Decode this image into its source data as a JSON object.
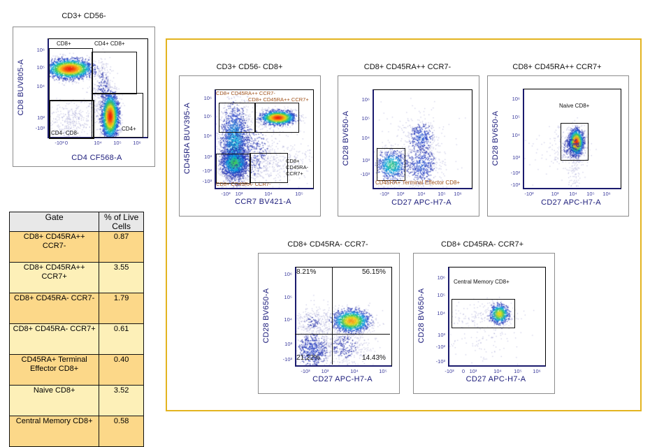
{
  "table": {
    "headers": [
      "Gate",
      "% of Live Cells"
    ],
    "rows": [
      {
        "gate": "CD8+ CD45RA++ CCR7-",
        "value": "0.87"
      },
      {
        "gate": "CD8+ CD45RA++ CCR7+",
        "value": "3.55"
      },
      {
        "gate": "CD8+ CD45RA- CCR7-",
        "value": "1.79"
      },
      {
        "gate": "CD8+ CD45RA- CCR7+",
        "value": "0.61"
      },
      {
        "gate": "CD45RA+ Terminal Effector CD8+",
        "value": "0.40"
      },
      {
        "gate": "Naive CD8+",
        "value": "3.52"
      },
      {
        "gate": "Central Memory CD8+",
        "value": "0.58"
      }
    ]
  },
  "colors": {
    "highlight_border": "#e3b420",
    "row_dark": "#fcd889",
    "row_light": "#fdf0b8",
    "axis_text": "#1b1b7a"
  },
  "chart_data": [
    {
      "type": "scatter",
      "title": "CD3+ CD56-",
      "xlabel": "CD4 CF568-A",
      "ylabel": "CD8 BUV805-A",
      "scale": "biexponential",
      "xticks": [
        "-10³",
        "0",
        "10⁴",
        "10⁵",
        "10⁶"
      ],
      "yticks": [
        "10⁶",
        "10⁵",
        "10⁴",
        "10²",
        "-10³"
      ],
      "gates": [
        "CD8+",
        "CD4+ CD8+",
        "CD4+",
        "CD4- CD8-"
      ]
    },
    {
      "type": "scatter",
      "title": "CD3+ CD56- CD8+",
      "xlabel": "CCR7 BV421-A",
      "ylabel": "CD45RA BUV395-A",
      "scale": "biexponential",
      "xticks": [
        "-10³",
        "10³",
        "10⁴",
        "10⁵"
      ],
      "yticks": [
        "10⁶",
        "10⁵",
        "10⁴",
        "10³",
        "-10²",
        "-10³"
      ],
      "gates": [
        "CD8+ CD45RA++ CCR7-",
        "CD8+ CD45RA++ CCR7+",
        "CD8+ CD45RA- CCR7-",
        "CD8+\nCD45RA-\nCCR7+"
      ]
    },
    {
      "type": "scatter",
      "title": "CD8+ CD45RA++ CCR7-",
      "xlabel": "CD27 APC-H7-A",
      "ylabel": "CD28 BV650-A",
      "scale": "biexponential",
      "xticks": [
        "-10³",
        "10³",
        "10⁴",
        "10⁵",
        "10⁶"
      ],
      "yticks": [
        "10⁶",
        "10⁵",
        "10⁴",
        "10³",
        "-10³"
      ],
      "gates": [
        "CD45RA+ Terminal Effector CD8+"
      ]
    },
    {
      "type": "scatter",
      "title": "CD8+ CD45RA++ CCR7+",
      "xlabel": "CD27 APC-H7-A",
      "ylabel": "CD28 BV650-A",
      "scale": "biexponential",
      "xticks": [
        "-10²",
        "10³",
        "10⁴",
        "10⁵",
        "10⁶"
      ],
      "yticks": [
        "10⁶",
        "10⁵",
        "10⁴",
        "10³",
        "-10²",
        "-10³"
      ],
      "gates": [
        "Naive CD8+"
      ]
    },
    {
      "type": "scatter",
      "title": "CD8+ CD45RA- CCR7-",
      "xlabel": "CD27 APC-H7-A",
      "ylabel": "CD28 BV650-A",
      "scale": "biexponential",
      "xticks": [
        "-10³",
        "10³",
        "10⁴",
        "10⁵"
      ],
      "yticks": [
        "10⁶",
        "10⁵",
        "10⁴",
        "10³",
        "-10³"
      ],
      "quadrants": {
        "top_left": "8.21%",
        "top_right": "56.15%",
        "bottom_left": "21.22%",
        "bottom_right": "14.43%"
      }
    },
    {
      "type": "scatter",
      "title": "CD8+ CD45RA- CCR7+",
      "xlabel": "CD27 APC-H7-A",
      "ylabel": "CD28 BV650-A",
      "scale": "biexponential",
      "xticks": [
        "-10³",
        "0",
        "10³",
        "10⁴",
        "10⁵",
        "10⁶"
      ],
      "yticks": [
        "10⁶",
        "10⁵",
        "10⁴",
        "10³",
        "-10²",
        "-10³"
      ],
      "gates": [
        "Central Memory CD8+"
      ]
    }
  ]
}
